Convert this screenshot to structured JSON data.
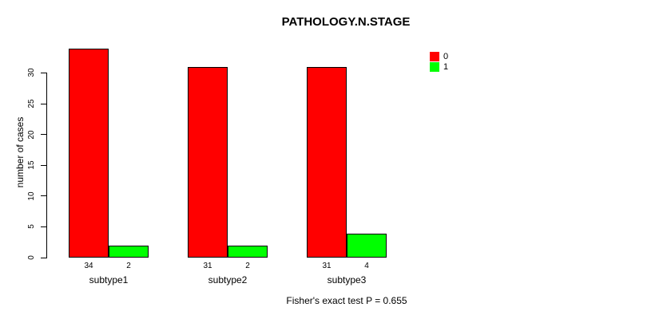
{
  "title": "PATHOLOGY.N.STAGE",
  "y_axis": {
    "label": "number of cases",
    "ticks": [
      0,
      5,
      10,
      15,
      20,
      25,
      30
    ]
  },
  "legend": {
    "items": [
      {
        "label": "0",
        "color": "#FF0000"
      },
      {
        "label": "1",
        "color": "#00FF00"
      }
    ]
  },
  "footer": "Fisher's exact test P = 0.655",
  "chart_data": {
    "type": "bar",
    "grouped": true,
    "title": "PATHOLOGY.N.STAGE",
    "categories": [
      "subtype1",
      "subtype2",
      "subtype3"
    ],
    "series": [
      {
        "name": "0",
        "color": "#FF0000",
        "values": [
          34,
          31,
          31
        ]
      },
      {
        "name": "1",
        "color": "#00FF00",
        "values": [
          2,
          2,
          4
        ]
      }
    ],
    "xlabel": "",
    "ylabel": "number of cases",
    "ylim": [
      0,
      34
    ],
    "yticks": [
      0,
      5,
      10,
      15,
      20,
      25,
      30
    ],
    "grid": false,
    "legend_position": "top-right",
    "bar_value_labels_shown": true,
    "annotation": "Fisher's exact test P = 0.655"
  }
}
